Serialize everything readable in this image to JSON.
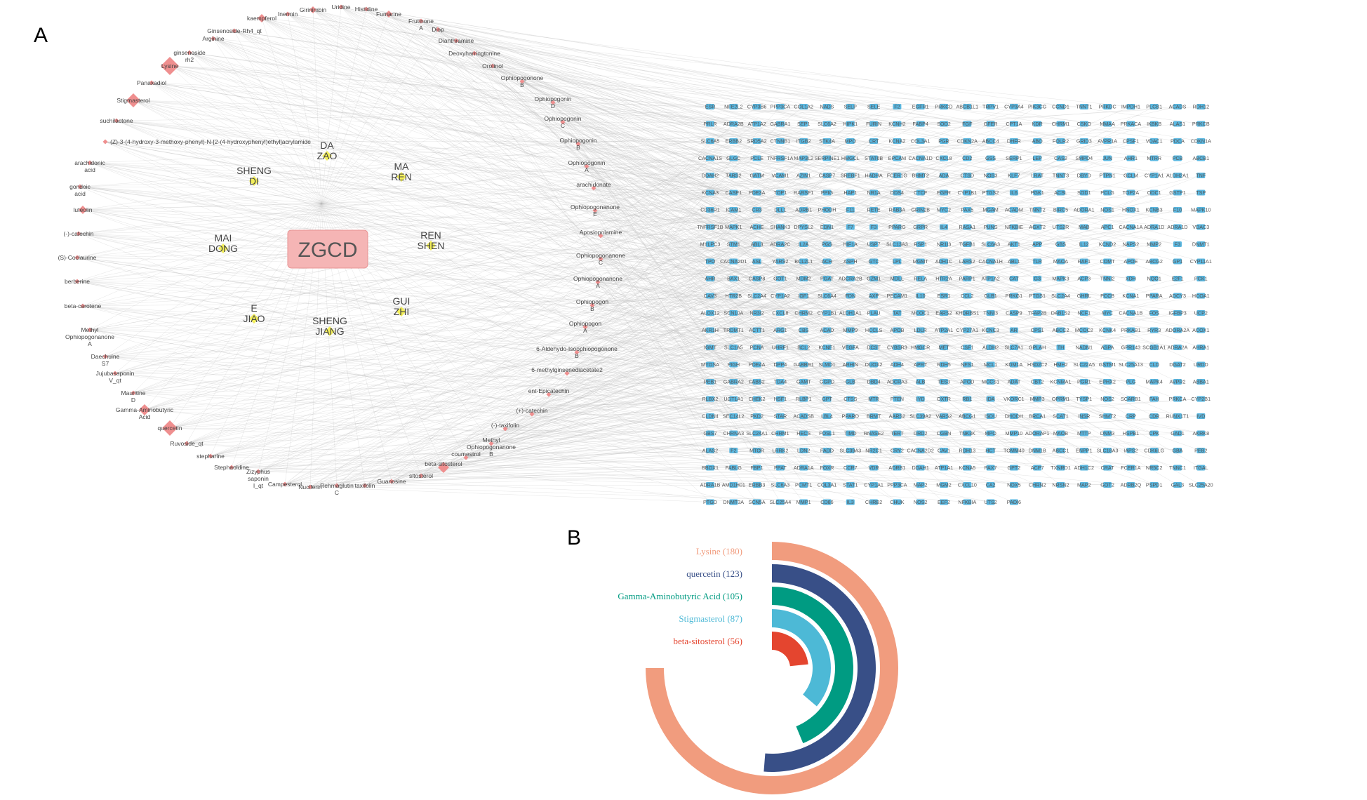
{
  "panel_a_label": "A",
  "panel_b_label": "B",
  "center_node": "ZGCD",
  "herbs": [
    [
      "DA",
      "ZAO"
    ],
    [
      "MA",
      "REN"
    ],
    [
      "SHENG",
      "DI"
    ],
    [
      "MAI",
      "DONG"
    ],
    [
      "REN",
      "SHEN"
    ],
    [
      "E",
      "JIAO"
    ],
    [
      "SHENG",
      "JIANG"
    ],
    [
      "GUI",
      "ZHI"
    ]
  ],
  "compounds_left": [
    [
      "Lysine"
    ],
    [
      "Panaxadiol"
    ],
    [
      "Stigmasterol"
    ],
    [
      "suchilactone"
    ],
    [
      "(Z)-3-(4-hydroxy-3-methoxy-phenyl)-N-[2-(4-hydroxyphenyl)ethyl]acrylamide"
    ],
    [
      "arachidonic",
      "acid"
    ],
    [
      "gondoic",
      "acid"
    ],
    [
      "luteolin"
    ],
    [
      "(-)-catechin"
    ],
    [
      "(S)-Coclaurine"
    ],
    [
      "berberine"
    ],
    [
      "beta-carotene"
    ],
    [
      "Methyl",
      "Ophiopogonanone",
      "A"
    ],
    [
      "Daechuine",
      "S7"
    ],
    [
      "Jujubasaponin",
      "V_qt"
    ],
    [
      "Mauritine",
      "D"
    ],
    [
      "Gamma-Aminobutyric",
      "Acid"
    ],
    [
      "quercetin"
    ],
    [
      "Ruvoside_qt"
    ],
    [
      "stepharine"
    ]
  ],
  "compounds_top": [
    [
      "kaempferol"
    ],
    [
      "Ginsenoside-Rh4_qt"
    ],
    [
      "Arginine"
    ],
    [
      "ginsenoside",
      "rh2"
    ],
    [
      "Inermin"
    ],
    [
      "Girinimbin"
    ],
    [
      "Uridine"
    ],
    [
      "Histidine"
    ],
    [
      "Fumarine"
    ],
    [
      "Frutinone",
      "A"
    ],
    [
      "Diop"
    ],
    [
      "Dianthramine"
    ],
    [
      "Deoxyharringtonine"
    ],
    [
      "Orotinol"
    ]
  ],
  "compounds_right": [
    [
      "Ophiopogonone",
      "B"
    ],
    [
      "Ophiopogonin",
      "D"
    ],
    [
      "Ophiopogonin",
      "C"
    ],
    [
      "Ophiopogonin",
      "B"
    ],
    [
      "Ophiopogonin",
      "A"
    ],
    [
      "arachidonate"
    ],
    [
      "Ophiopogonanone",
      "E"
    ],
    [
      "Aposiopolamine"
    ],
    [
      "Ophiopogonanone",
      "C"
    ],
    [
      "Ophiopogonanone",
      "A"
    ],
    [
      "Ophiopogon",
      "B"
    ],
    [
      "Ophiopogon",
      "A"
    ],
    [
      "6-Aldehydo-Isoophiopogonone",
      "B"
    ],
    [
      "6-methylginsenediacetate2"
    ],
    [
      "ent-Epicatechin"
    ],
    [
      "(+)-catechin"
    ],
    [
      "(-)-taxifolin"
    ],
    [
      "Methyl",
      "Ophiopogonanone",
      "B"
    ],
    [
      "coumestrol"
    ],
    [
      "beta-sitosterol"
    ]
  ],
  "compounds_bottom": [
    [
      "Stephaoldine"
    ],
    [
      "Zizyphus",
      "saponin",
      "I_qt"
    ],
    [
      "Campesterol"
    ],
    [
      "Nuciferin"
    ],
    [
      "Rehmaglutin",
      "C"
    ],
    [
      "taxifolin"
    ],
    [
      "Guanosine"
    ],
    [
      "sitosterol"
    ]
  ],
  "targets": [
    "ESR",
    "NFE2L2",
    "CYP3B6",
    "PPP3CA",
    "COL1A2",
    "NADS",
    "SELP",
    "SELE",
    "F2",
    "EGFR1",
    "PRKCD",
    "ABCB1L1",
    "TRPV1",
    "CYP3A4",
    "PIK3CG",
    "CCND1",
    "TNNT1",
    "PRKDC",
    "IMPDH1",
    "PLCB1",
    "ACADS",
    "RDH12",
    "PRLR",
    "ADRA2B",
    "ATP1A2",
    "GABRA1",
    "SEP1",
    "SLC6A2",
    "HIPK1",
    "FURIN",
    "KCNH2",
    "FABP4",
    "SOD2",
    "FGF",
    "GFER",
    "CPT1A",
    "KDR",
    "CHRM1",
    "CSKO",
    "MMAA",
    "PRKACA",
    "IKBKB",
    "ALAS1",
    "PRKCB",
    "SLC6A5",
    "ERBB2",
    "SRD5A2",
    "CTNNB1",
    "ITGB2",
    "STK4A",
    "MPO",
    "CRT",
    "KCNA2",
    "COL3A1",
    "PGR",
    "CDKN2A",
    "ABCC4",
    "DHFR",
    "ABO",
    "FOLR2",
    "GRID3",
    "AVPR1A",
    "CPSF1",
    "VDAC1",
    "PDCA",
    "CDKN1A",
    "CACNA1S",
    "GLGC",
    "PCLE",
    "TNFRSF1A",
    "MAP3L2",
    "SERPINE1",
    "HMGCL",
    "STAT6B",
    "EPCAM",
    "CACNA1D",
    "CXCL8",
    "CD2",
    "GSS",
    "SERP1",
    "LEP",
    "CAS2",
    "SMPD4",
    "JUN",
    "AHR1",
    "MTRR",
    "PCB",
    "ABCB1",
    "DDAH2",
    "TARS2",
    "GATM",
    "VCAM1",
    "AZIN1",
    "CASP7",
    "SREBF1",
    "HADHA",
    "FCER1G",
    "BHMT2",
    "ADA",
    "CTSD",
    "NOS3",
    "KLF7",
    "LRAT",
    "TNNT3",
    "DBYD",
    "PTPN1",
    "GCLM",
    "CYP1A1",
    "ALDH2A1",
    "TNF",
    "KCNA3",
    "CASP1",
    "PDE3A",
    "TOP1",
    "RARSF1",
    "PPIG",
    "HAP1",
    "NR1A",
    "DDS4",
    "CTCF",
    "EGFR",
    "CYP1B1",
    "PTGS2",
    "IL6",
    "PGK1",
    "ACSL",
    "SOD1",
    "PCLG",
    "TOP2A",
    "ODC1",
    "GSTP1",
    "TSP",
    "CD36R1",
    "ICAM1",
    "CR3",
    "DLL1",
    "ADRB1",
    "PHODH",
    "F11",
    "RETE",
    "RAB3A",
    "GRIN2B",
    "MYC2",
    "PAX5",
    "MGAM",
    "ACADM",
    "TNNT2",
    "BIRC5",
    "ADORA1",
    "NOS1",
    "HNOX1",
    "KCNB3",
    "F10",
    "MAPK10",
    "TNFRSF1B",
    "MAPK1",
    "ACHE",
    "SHANK3",
    "DPYSL2",
    "EDN1",
    "F7",
    "F3",
    "PPARG",
    "GRPR",
    "IL4",
    "RASA1",
    "PUNS",
    "NFKBIE",
    "AGXT2",
    "UTS2R",
    "MAB",
    "APC1",
    "CACNA1A",
    "ADRA1D",
    "ADRA1D",
    "VDAC3",
    "MYLPC3",
    "STM1",
    "ABL3",
    "ADRA2C",
    "IL2A",
    "PGS",
    "HIF1A",
    "USP7",
    "SLC13A3",
    "RSP1",
    "NR1I3",
    "TGFB1",
    "SLC6A3",
    "AKT1",
    "APP",
    "GBS",
    "IL12",
    "KCND2",
    "NAPS2",
    "MMP2",
    "F3",
    "DNMT1",
    "TPO",
    "CACNA2D1",
    "ASL",
    "YARS2",
    "BCL2L1",
    "ACH",
    "ASPH",
    "GTC",
    "LPL",
    "MGMT",
    "ADH1C",
    "LARS2",
    "CACNA1H",
    "ABL1",
    "TLR",
    "MAOA",
    "RAF1",
    "COMT",
    "APOE",
    "ABCG2",
    "GP1",
    "CYP11A1",
    "AHR",
    "BAX1",
    "CASP8",
    "GOT1",
    "MDM2",
    "PGAT",
    "ADCRA2B",
    "GZM1",
    "MDLL",
    "RELA",
    "HTR2A",
    "PARP1",
    "ATP1A2",
    "CAT",
    "G3",
    "MAPK3",
    "ACP3",
    "TNNI2",
    "XDH",
    "NQO1",
    "E2F1",
    "PCK1",
    "CAV3",
    "HTR2B",
    "SLC2A4",
    "CYP1A2",
    "IGF1",
    "SLC6A4",
    "FDN",
    "AXP",
    "PECAM1",
    "IL10",
    "ESR1",
    "CCL2",
    "GLB1",
    "PRKG1",
    "PTGS1",
    "SLC2A4",
    "GHRL",
    "PCCB",
    "KCNA1",
    "PPARA",
    "ADCY3",
    "HCOA1",
    "ALOX12",
    "SCN10A",
    "NR3I2",
    "CXCL8",
    "CHRM2",
    "CYP1B1",
    "ALDH1A1",
    "PLAU",
    "TAT",
    "MCOC1",
    "EARS2",
    "KHDRBS1",
    "TNNI3",
    "CASP9",
    "TFAP2B",
    "DAB1S2",
    "NCF1",
    "MYC",
    "CACNA1B",
    "FOS",
    "IGFBP3",
    "UCP2",
    "AKR1H",
    "TRDMT1",
    "ACTT1",
    "ARG1",
    "CBS",
    "ACAD",
    "MMP9",
    "HCCLS",
    "APOB",
    "LDLR",
    "ATP2A1",
    "CYP27A1",
    "KCNC3",
    "AR",
    "CPS1",
    "ABCC2",
    "MCOC2",
    "KCNK4",
    "PRKAB1",
    "RYR3",
    "ADORA2A",
    "ACOX1",
    "IGMT",
    "SLC1A5",
    "PCNA",
    "UHRF1",
    "BCL2",
    "KCNE1",
    "VEGFA",
    "DCST",
    "CYBSR3",
    "HMGCR",
    "MET",
    "CSF1",
    "ALDH2",
    "SLC7A1",
    "GPLAH",
    "TH",
    "NADN1",
    "ASPA",
    "GPR143",
    "SCGB1A1",
    "ADRA2A",
    "AHRA1",
    "MYOSA",
    "PIGH",
    "PDE4A",
    "DPP4",
    "GABBR1",
    "SLMO1",
    "ARHIN",
    "DUOX2",
    "ADH4",
    "APRT",
    "RDH5",
    "NFS1",
    "MCL1",
    "KDM1A",
    "HSD2C2",
    "HMH2",
    "SLC22A5",
    "GSTM1",
    "SLC25A13",
    "CLD",
    "DGAT2",
    "URDD",
    "PEB1",
    "GABRA2",
    "FABS2",
    "TDA4",
    "GAMT",
    "GGPD",
    "GLB",
    "DBD4",
    "ADCRA3",
    "ALB",
    "TES3",
    "APOD",
    "MCCS1",
    "ADAT",
    "CBT2",
    "KCNMA1",
    "PGR1",
    "EPHX2",
    "PLG",
    "MAPK4",
    "AVPR2",
    "ABBA1",
    "RLBX2",
    "UGT1A1",
    "CHEK2",
    "HSF1",
    "RLBP1",
    "GPT",
    "CTSS",
    "MTR",
    "PTEN",
    "IYD",
    "OXTR",
    "RB1",
    "IDA",
    "VKORC1",
    "MMP3",
    "OPRM1",
    "TYSP1",
    "NOS2",
    "SCARB1",
    "FAH",
    "PRKCA",
    "CYP2B1",
    "CLDN4",
    "SEC14L2",
    "PKD2",
    "STAR",
    "ACADSB",
    "LBL4",
    "PPARD",
    "BRMT",
    "AARS2",
    "SLC39A2",
    "VARS2",
    "ABCG1",
    "ISDU",
    "DHODH",
    "BRCA1",
    "SCAT1",
    "INSR",
    "SHMT2",
    "CRP",
    "CDR",
    "RUNX1T1",
    "IVD",
    "GBS7",
    "CHRNA3",
    "SLC24A1",
    "CHRM1",
    "HECS",
    "FOSL1",
    "TIMD",
    "RNASE2",
    "TERT",
    "DRD2",
    "CGBN",
    "TNK3K",
    "MPO",
    "MMP10",
    "ADORAP1",
    "MAOB",
    "MTTP",
    "DNM3",
    "HSPB1",
    "CPK",
    "GAD1",
    "AKRK8",
    "ALAS2",
    "F2",
    "MTOR",
    "LRRK2",
    "LDN2",
    "FADD",
    "SLC39A3",
    "NR2C1",
    "CRY2",
    "CACNA2D2",
    "CAV1",
    "RDH13",
    "HCT",
    "TOMM40",
    "DNM1B",
    "ABCC1",
    "ENPP1",
    "SLC18A3",
    "IAPS2",
    "CDK6LG",
    "GBA",
    "PEB2",
    "BBOX1",
    "FABLG",
    "FBP1",
    "PPAT",
    "ADRA1A",
    "FOXR",
    "CCR7",
    "VDR",
    "ADRB1",
    "DDAH1",
    "ATP1A1",
    "KCNA5",
    "PAX7",
    "GPT2",
    "ACP7",
    "TXNRD1",
    "ADH1C2",
    "CRAT",
    "FCER1A",
    "NR5C2",
    "TNNC1",
    "ITGAL",
    "ADRA1B",
    "AMD1H01",
    "ERBB3",
    "SLC6A3",
    "PCMT1",
    "COL3A1",
    "STAT1",
    "CYP1A1",
    "PPP3CA",
    "MAP2",
    "MGM2",
    "CXCL10",
    "CA2",
    "NOX5",
    "CHRN2",
    "NRSN2",
    "MAP2",
    "GOT2",
    "ADRB2Q",
    "PSPD1",
    "GAL3",
    "SLC25A20",
    "PTGD",
    "DNMT3A",
    "SCN5A",
    "SLC25A4",
    "MMP1",
    "CD86",
    "IL3",
    "CHRB2",
    "CHUK",
    "NOS2",
    "EEF2",
    "NFKBIA",
    "UTS2",
    "PADI6"
  ],
  "chart_data": {
    "type": "radial-bar",
    "title": "",
    "categories": [
      "Lysine",
      "quercetin",
      "Gamma-Aminobutyric Acid",
      "Stigmasterol",
      "beta-sitosterol"
    ],
    "values": [
      180,
      123,
      105,
      87,
      56
    ],
    "labels": [
      "Lysine (180)",
      "quercetin (123)",
      "Gamma-Aminobutyric Acid (105)",
      "Stigmasterol (87)",
      "beta-sitosterol (56)"
    ],
    "max_value": 180,
    "colors": [
      "#f19c7e",
      "#384f87",
      "#009b82",
      "#4db9d6",
      "#e4452f"
    ]
  },
  "colors": {
    "compound_node": "#ef8f8f",
    "herb_node": "#f3ef5a",
    "target_node": "#5ab7e0",
    "center_fill": "#f5b5b5",
    "center_stroke": "#e89494",
    "edge": "#b8b8b8"
  }
}
